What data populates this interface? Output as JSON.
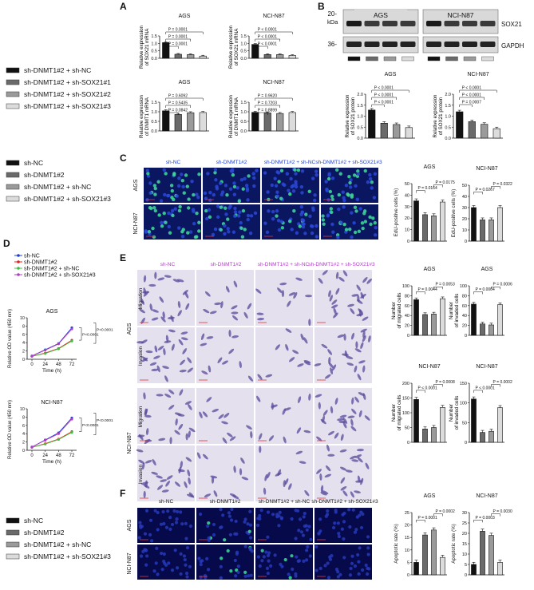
{
  "panels": {
    "A": {
      "label": "A"
    },
    "B": {
      "label": "B"
    },
    "C": {
      "label": "C"
    },
    "D": {
      "label": "D"
    },
    "E": {
      "label": "E"
    },
    "F": {
      "label": "F"
    }
  },
  "legends": {
    "legend1": [
      "sh-DNMT1#2 + sh-NC",
      "sh-DNMT1#2 + sh-SOX21#1",
      "sh-DNMT1#2 + sh-SOX21#2",
      "sh-DNMT1#2 + sh-SOX21#3"
    ],
    "legend2": [
      "sh-NC",
      "sh-DNMT1#2",
      "sh-DNMT1#2 + sh-NC",
      "sh-DNMT1#2 + sh-SOX21#3"
    ]
  },
  "colors": {
    "black": "#111111",
    "dgray": "#6a6a6a",
    "mgray": "#9a9a9a",
    "lgray": "#dcdcdc",
    "blue": "#1f3fd6",
    "red": "#e0241c",
    "green": "#3fbf3f",
    "purple": "#b23cc9",
    "fluor": "#0a1a7a",
    "stain": "#c8c2dc"
  },
  "western": {
    "kda": "kDa",
    "mw": [
      "20-",
      "36-"
    ],
    "groups": [
      "AGS",
      "NCI-N87"
    ],
    "bands": [
      "SOX21",
      "GAPDH"
    ]
  },
  "panelC": {
    "cols": [
      "sh-NC",
      "sh-DNMT1#2",
      "sh-DNMT1#2 + sh-NC",
      "sh-DNMT1#2 + sh-SOX21#3"
    ],
    "rows": [
      "AGS",
      "NCI-N87"
    ]
  },
  "panelE": {
    "cols": [
      "sh-NC",
      "sh-DNMT1#2",
      "sh-DNMT1#2 + sh-NC",
      "sh-DNMT1#2 + sh-SOX21#3"
    ],
    "groups": [
      "AGS",
      "NCI-N87"
    ],
    "rows": [
      "Migration",
      "Invasion"
    ]
  },
  "panelF": {
    "cols": [
      "sh-NC",
      "sh-DNMT1#2",
      "sh-DNMT1#2 + sh-NC",
      "sh-DNMT1#2 + sh-SOX21#3"
    ],
    "rows": [
      "AGS",
      "NCI-N87"
    ]
  },
  "chart_data": [
    {
      "id": "a1",
      "type": "bar",
      "title": "AGS",
      "ylabel": "Relative expression of SOX21 mRNA",
      "ylim": [
        0,
        1.5
      ],
      "yticks": [
        "0.0",
        "0.5",
        "1.0",
        "1.5"
      ],
      "values": [
        1.05,
        0.27,
        0.25,
        0.15
      ],
      "colors": [
        "#111111",
        "#6a6a6a",
        "#9a9a9a",
        "#dcdcdc"
      ],
      "pvals": [
        "P = 0.0001",
        "P = 0.0001",
        "P = 0.0001"
      ]
    },
    {
      "id": "a2",
      "type": "bar",
      "title": "NCI-N87",
      "ylabel": "Relative expression of SOX21 mRNA",
      "ylim": [
        0,
        1.5
      ],
      "yticks": [
        "0.0",
        "0.5",
        "1.0",
        "1.5"
      ],
      "values": [
        0.93,
        0.25,
        0.25,
        0.19
      ],
      "colors": [
        "#111111",
        "#6a6a6a",
        "#9a9a9a",
        "#dcdcdc"
      ],
      "pvals": [
        "P < 0.0001",
        "P < 0.0001",
        "P < 0.0001"
      ]
    },
    {
      "id": "a3",
      "type": "bar",
      "title": "AGS",
      "ylabel": "Relative expression of DNMT1 mRNA",
      "ylim": [
        0,
        1.5
      ],
      "yticks": [
        "0.0",
        "0.5",
        "1.0",
        "1.5"
      ],
      "values": [
        1.05,
        0.86,
        0.95,
        0.96
      ],
      "colors": [
        "#111111",
        "#6a6a6a",
        "#9a9a9a",
        "#dcdcdc"
      ],
      "pvals": [
        "P = 0.0842",
        "P = 0.5435",
        "P = 0.6092"
      ]
    },
    {
      "id": "a4",
      "type": "bar",
      "title": "NCI-N87",
      "ylabel": "Relative expression of DNMT1 mRNA",
      "ylim": [
        0,
        1.5
      ],
      "yticks": [
        "0.0",
        "0.5",
        "1.0",
        "1.5"
      ],
      "values": [
        0.97,
        0.94,
        0.91,
        0.96
      ],
      "colors": [
        "#111111",
        "#6a6a6a",
        "#9a9a9a",
        "#dcdcdc"
      ],
      "pvals": [
        "P = 0.8899",
        "P = 0.7203",
        "P = 0.9620"
      ]
    },
    {
      "id": "b1",
      "type": "bar",
      "title": "AGS",
      "ylabel": "Relative expression of SOX21 protein",
      "ylim": [
        0,
        2.0
      ],
      "yticks": [
        "0.0",
        "0.5",
        "1.0",
        "1.5",
        "2.0"
      ],
      "values": [
        1.28,
        0.68,
        0.62,
        0.48
      ],
      "colors": [
        "#111111",
        "#6a6a6a",
        "#9a9a9a",
        "#dcdcdc"
      ],
      "pvals": [
        "P < 0.0001",
        "P < 0.0001",
        "P < 0.0001"
      ]
    },
    {
      "id": "b2",
      "type": "bar",
      "title": "NCI-N87",
      "ylabel": "Relative expression of SOX21 protein",
      "ylim": [
        0,
        2.0
      ],
      "yticks": [
        "0.0",
        "0.5",
        "1.0",
        "1.5",
        "2.0"
      ],
      "values": [
        1.2,
        0.75,
        0.63,
        0.43
      ],
      "colors": [
        "#111111",
        "#6a6a6a",
        "#9a9a9a",
        "#dcdcdc"
      ],
      "pvals": [
        "P = 0.0007",
        "P < 0.0001",
        "P < 0.0001"
      ]
    },
    {
      "id": "c1",
      "type": "bar",
      "title": "AGS",
      "ylabel": "EdU-positive cells (%)",
      "ylim": [
        0,
        50
      ],
      "yticks": [
        "0",
        "10",
        "20",
        "30",
        "40",
        "50"
      ],
      "values": [
        35,
        23,
        22,
        34
      ],
      "colors": [
        "#111111",
        "#6a6a6a",
        "#9a9a9a",
        "#dcdcdc"
      ],
      "pvals": [
        "P = 0.0164",
        "P = 0.0175"
      ]
    },
    {
      "id": "c2",
      "type": "bar",
      "title": "NCI-N87",
      "ylabel": "EdU-positive cells (%)",
      "ylim": [
        0,
        50
      ],
      "yticks": [
        "0",
        "10",
        "20",
        "30",
        "40",
        "50"
      ],
      "values": [
        30,
        19,
        19,
        30
      ],
      "colors": [
        "#111111",
        "#6a6a6a",
        "#9a9a9a",
        "#dcdcdc"
      ],
      "pvals": [
        "P = 0.0267",
        "P = 0.0322"
      ]
    },
    {
      "id": "e1",
      "type": "bar",
      "title": "AGS",
      "ylabel": "Number of migrated cells",
      "ylim": [
        0,
        100
      ],
      "yticks": [
        "0",
        "20",
        "40",
        "60",
        "80",
        "100"
      ],
      "values": [
        72,
        42,
        43,
        74
      ],
      "colors": [
        "#111111",
        "#6a6a6a",
        "#9a9a9a",
        "#dcdcdc"
      ],
      "pvals": [
        "P = 0.0044",
        "P = 0.0053"
      ]
    },
    {
      "id": "e2",
      "type": "bar",
      "title": "AGS",
      "ylabel": "Number of invaded cells",
      "ylim": [
        0,
        100
      ],
      "yticks": [
        "0",
        "20",
        "40",
        "60",
        "80",
        "100"
      ],
      "values": [
        63,
        23,
        21,
        62
      ],
      "colors": [
        "#111111",
        "#6a6a6a",
        "#9a9a9a",
        "#dcdcdc"
      ],
      "pvals": [
        "P = 0.0004",
        "P = 0.0006"
      ]
    },
    {
      "id": "e3",
      "type": "bar",
      "title": "NCI-N87",
      "ylabel": "Number of migrated cells",
      "ylim": [
        0,
        200
      ],
      "yticks": [
        "0",
        "50",
        "100",
        "150",
        "200"
      ],
      "values": [
        145,
        45,
        50,
        118
      ],
      "colors": [
        "#111111",
        "#6a6a6a",
        "#9a9a9a",
        "#dcdcdc"
      ],
      "pvals": [
        "P < 0.0001",
        "P = 0.0008"
      ]
    },
    {
      "id": "e4",
      "type": "bar",
      "title": "NCI-N87",
      "ylabel": "Number of invaded cells",
      "ylim": [
        0,
        150
      ],
      "yticks": [
        "0",
        "50",
        "100",
        "150"
      ],
      "values": [
        110,
        25,
        28,
        88
      ],
      "colors": [
        "#111111",
        "#6a6a6a",
        "#9a9a9a",
        "#dcdcdc"
      ],
      "pvals": [
        "P < 0.0001",
        "P = 0.0002"
      ]
    },
    {
      "id": "f1",
      "type": "bar",
      "title": "AGS",
      "ylabel": "Apoptotic rate (%)",
      "ylim": [
        0,
        25
      ],
      "yticks": [
        "0",
        "5",
        "10",
        "15",
        "20",
        "25"
      ],
      "values": [
        5,
        16,
        18,
        7
      ],
      "colors": [
        "#111111",
        "#6a6a6a",
        "#9a9a9a",
        "#dcdcdc"
      ],
      "pvals": [
        "P = 0.0001",
        "P = 0.0002"
      ]
    },
    {
      "id": "f2",
      "type": "bar",
      "title": "NCI-N87",
      "ylabel": "Apoptotic rate (%)",
      "ylim": [
        0,
        30
      ],
      "yticks": [
        "0",
        "5",
        "10",
        "15",
        "20",
        "25",
        "30"
      ],
      "values": [
        5,
        21,
        19,
        6
      ],
      "colors": [
        "#111111",
        "#6a6a6a",
        "#9a9a9a",
        "#dcdcdc"
      ],
      "pvals": [
        "P = 0.0003",
        "P = 0.0030"
      ]
    },
    {
      "id": "d1",
      "type": "line",
      "title": "AGS",
      "ylabel": "Relative OD value (450 nm)",
      "xlabel": "Time (h)",
      "x": [
        0,
        24,
        48,
        72
      ],
      "ylim": [
        0,
        10
      ],
      "yticks": [
        "0",
        "2",
        "4",
        "6",
        "8",
        "10"
      ],
      "series": [
        {
          "name": "sh-NC",
          "color": "#1f3fd6",
          "values": [
            0.8,
            2.3,
            3.8,
            7.6
          ]
        },
        {
          "name": "sh-DNMT1#2",
          "color": "#e0241c",
          "values": [
            0.7,
            1.5,
            2.6,
            4.6
          ]
        },
        {
          "name": "sh-DNMT1#2 + sh-NC",
          "color": "#3fbf3f",
          "values": [
            0.7,
            1.4,
            2.5,
            4.4
          ]
        },
        {
          "name": "sh-DNMT1#2 + sh-SOX21#3",
          "color": "#b23cc9",
          "values": [
            0.8,
            2.2,
            3.7,
            7.3
          ]
        }
      ],
      "pvals": [
        "P<0.0001",
        "P<0.0001"
      ]
    },
    {
      "id": "d2",
      "type": "line",
      "title": "NCI-N87",
      "ylabel": "Relative OD value (450 nm)",
      "xlabel": "Time (h)",
      "x": [
        0,
        24,
        48,
        72
      ],
      "ylim": [
        0,
        10
      ],
      "yticks": [
        "0",
        "2",
        "4",
        "6",
        "8",
        "10"
      ],
      "series": [
        {
          "name": "sh-NC",
          "color": "#1f3fd6",
          "values": [
            0.8,
            2.5,
            4.2,
            7.8
          ]
        },
        {
          "name": "sh-DNMT1#2",
          "color": "#e0241c",
          "values": [
            0.7,
            1.6,
            2.7,
            4.5
          ]
        },
        {
          "name": "sh-DNMT1#2 + sh-NC",
          "color": "#3fbf3f",
          "values": [
            0.7,
            1.5,
            2.6,
            4.3
          ]
        },
        {
          "name": "sh-DNMT1#2 + sh-SOX21#3",
          "color": "#b23cc9",
          "values": [
            0.8,
            2.4,
            4.0,
            7.5
          ]
        }
      ],
      "pvals": [
        "P<0.0001",
        "P<0.0001"
      ]
    }
  ]
}
